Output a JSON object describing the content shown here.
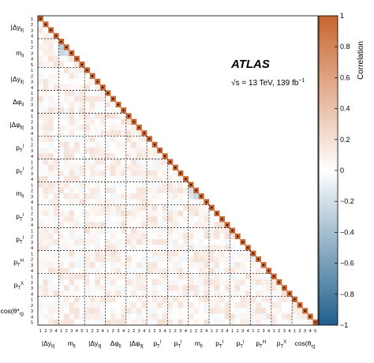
{
  "chart_data": {
    "type": "heatmap",
    "layout": "lower-triangular correlation matrix",
    "experiment_label": "ATLAS",
    "energy_label_sqrt": "s",
    "energy_label_rest": " = 13 TeV, 139 fb",
    "energy_label_exp": "−1",
    "colorbar": {
      "label": "Correlation",
      "range": [
        -1,
        1
      ],
      "ticks": [
        "1",
        "0.8",
        "0.6",
        "0.4",
        "0.2",
        "0",
        "−0.2",
        "−0.4",
        "−0.6",
        "−0.8",
        "−1"
      ],
      "colormap": {
        "neg": "#1f5f8b",
        "zero": "#ffffff",
        "pos": "#c8652e"
      }
    },
    "groups": [
      {
        "name": "|Δy_ll|",
        "bins": 4
      },
      {
        "name": "m_ll",
        "bins": 5
      },
      {
        "name": "|Δy_ll|",
        "bins": 4
      },
      {
        "name": "Δφ_ll",
        "bins": 4
      },
      {
        "name": "|Δφ_ll|",
        "bins": 4
      },
      {
        "name": "p_T^l",
        "bins": 4
      },
      {
        "name": "p_T^l",
        "bins": 4
      },
      {
        "name": "m_ll",
        "bins": 4
      },
      {
        "name": "p_T^l",
        "bins": 4
      },
      {
        "name": "p_T^l",
        "bins": 4
      },
      {
        "name": "p_T^H",
        "bins": 4
      },
      {
        "name": "p_T^X",
        "bins": 4
      },
      {
        "name": "cos(θ_η)",
        "bins": 5
      }
    ],
    "y_axis_labels": [
      "|Δy_ll|",
      "m_ll",
      "|Δy_ll|",
      "Δφ_ll",
      "|Δφ_ll|",
      "p_T^l",
      "p_T^l",
      "m_ll",
      "p_T^l",
      "p_T^l",
      "p_T^H",
      "p_T^X",
      "cos(θ*_η)"
    ],
    "x_axis_labels": [
      "|Δy_ll|",
      "m_ll",
      "|Δy_ll|",
      "Δφ_ll",
      "|Δφ_ll|",
      "p_T^l",
      "p_T^l",
      "m_ll",
      "p_T^l",
      "p_T^l",
      "p_T^H",
      "p_T^X",
      "cos(θ_η)"
    ],
    "diagonal": 1.0,
    "strong_offdiag": [
      {
        "row": 5,
        "col": 4,
        "value": -0.3
      },
      {
        "row": 6,
        "col": 4,
        "value": -0.25
      },
      {
        "row": 6,
        "col": 5,
        "value": -0.2
      },
      {
        "row": 30,
        "col": 29,
        "value": -0.2
      },
      {
        "row": 31,
        "col": 30,
        "value": -0.25
      },
      {
        "row": 31,
        "col": 29,
        "value": -0.15
      },
      {
        "row": 42,
        "col": 41,
        "value": -0.1
      },
      {
        "row": 57,
        "col": 52,
        "value": 0.4
      }
    ],
    "typical_offdiag_range": [
      -0.05,
      0.2
    ]
  }
}
